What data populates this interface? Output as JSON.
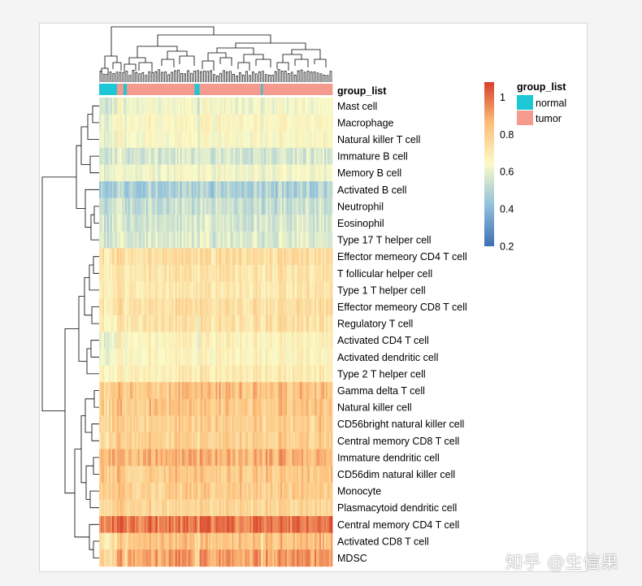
{
  "chart_data": {
    "type": "heatmap",
    "annotation_title": "group_list",
    "group_legend": {
      "title": "group_list",
      "entries": [
        {
          "name": "normal",
          "color": "#1cc8d6"
        },
        {
          "name": "tumor",
          "color": "#f49a8e"
        }
      ]
    },
    "color_scale": {
      "ticks": [
        "1",
        "0.8",
        "0.6",
        "0.4",
        "0.2"
      ],
      "tick_values": [
        1,
        0.8,
        0.6,
        0.4,
        0.2
      ],
      "range": [
        0.2,
        1.08
      ],
      "colors": [
        "#3f6fb4",
        "#8fc0dc",
        "#fbfbc8",
        "#fdbf7a",
        "#d8402b"
      ]
    },
    "rows": [
      {
        "label": "Mast cell",
        "mean": 0.63,
        "normal_mean": 0.56
      },
      {
        "label": "Macrophage",
        "mean": 0.66,
        "normal_mean": 0.6
      },
      {
        "label": "Natural killer T cell",
        "mean": 0.65,
        "normal_mean": 0.6
      },
      {
        "label": "Immature  B cell",
        "mean": 0.57,
        "normal_mean": 0.55
      },
      {
        "label": "Memory B cell",
        "mean": 0.63,
        "normal_mean": 0.6
      },
      {
        "label": "Activated B cell",
        "mean": 0.49,
        "normal_mean": 0.45
      },
      {
        "label": "Neutrophil",
        "mean": 0.54,
        "normal_mean": 0.52
      },
      {
        "label": "Eosinophil",
        "mean": 0.57,
        "normal_mean": 0.55
      },
      {
        "label": "Type 17 T helper cell",
        "mean": 0.58,
        "normal_mean": 0.56
      },
      {
        "label": "Effector memeory CD4 T cell",
        "mean": 0.76,
        "normal_mean": 0.72
      },
      {
        "label": "T follicular helper cell",
        "mean": 0.73,
        "normal_mean": 0.69
      },
      {
        "label": "Type 1 T helper cell",
        "mean": 0.72,
        "normal_mean": 0.68
      },
      {
        "label": "Effector memeory CD8 T cell",
        "mean": 0.75,
        "normal_mean": 0.7
      },
      {
        "label": "Regulatory T cell",
        "mean": 0.74,
        "normal_mean": 0.66
      },
      {
        "label": "Activated CD4 T cell",
        "mean": 0.68,
        "normal_mean": 0.6
      },
      {
        "label": "Activated dendritic cell",
        "mean": 0.67,
        "normal_mean": 0.62
      },
      {
        "label": "Type 2 T helper cell",
        "mean": 0.7,
        "normal_mean": 0.66
      },
      {
        "label": "Gamma delta T cell",
        "mean": 0.84,
        "normal_mean": 0.79
      },
      {
        "label": "Natural killer cell",
        "mean": 0.83,
        "normal_mean": 0.78
      },
      {
        "label": "CD56bright natural killer cell",
        "mean": 0.8,
        "normal_mean": 0.77
      },
      {
        "label": "Central memory CD8 T cell",
        "mean": 0.8,
        "normal_mean": 0.76
      },
      {
        "label": "Immature dendritic cell",
        "mean": 0.88,
        "normal_mean": 0.86
      },
      {
        "label": "CD56dim natural killer cell",
        "mean": 0.82,
        "normal_mean": 0.8
      },
      {
        "label": "Monocyte",
        "mean": 0.81,
        "normal_mean": 0.79
      },
      {
        "label": "Plasmacytoid dendritic cell",
        "mean": 0.78,
        "normal_mean": 0.76
      },
      {
        "label": "Central memory CD4 T cell",
        "mean": 0.99,
        "normal_mean": 0.96
      },
      {
        "label": "Activated CD8 T cell",
        "mean": 0.84,
        "normal_mean": 0.72
      },
      {
        "label": "MDSC",
        "mean": 0.92,
        "normal_mean": 0.76
      }
    ]
  },
  "watermark": "知乎 @生信果"
}
